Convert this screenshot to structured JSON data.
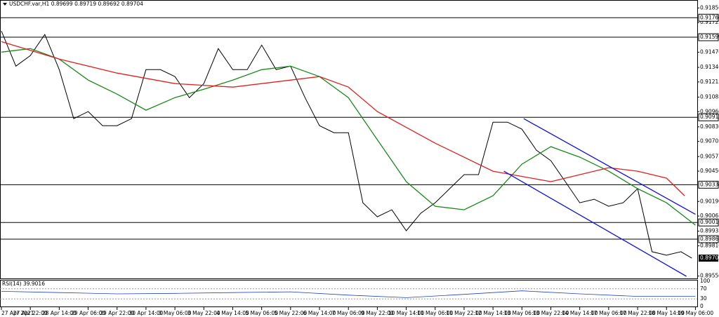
{
  "chart_data": {
    "type": "line",
    "title": "USDCHF.var,H1  0.89699 0.89719 0.89692 0.89704",
    "xlim": [
      0,
      385
    ],
    "ylim": [
      0.8953,
      0.919
    ],
    "xticks": [
      {
        "value": 0,
        "label": "27 Apr 2021"
      },
      {
        "value": 16,
        "label": "27 Apr 22:00"
      },
      {
        "value": 32,
        "label": "28 Apr 14:00"
      },
      {
        "value": 48,
        "label": "29 Apr 06:00"
      },
      {
        "value": 64,
        "label": "29 Apr 22:00"
      },
      {
        "value": 80,
        "label": "30 Apr 14:00"
      },
      {
        "value": 96,
        "label": "3 May 06:00"
      },
      {
        "value": 112,
        "label": "3 May 22:00"
      },
      {
        "value": 128,
        "label": "4 May 14:00"
      },
      {
        "value": 144,
        "label": "5 May 06:00"
      },
      {
        "value": 160,
        "label": "5 May 22:00"
      },
      {
        "value": 176,
        "label": "6 May 14:00"
      },
      {
        "value": 192,
        "label": "7 May 06:00"
      },
      {
        "value": 208,
        "label": "9 May 22:00"
      },
      {
        "value": 224,
        "label": "10 May 14:00"
      },
      {
        "value": 240,
        "label": "11 May 06:00"
      },
      {
        "value": 256,
        "label": "11 May 22:00"
      },
      {
        "value": 272,
        "label": "12 May 14:00"
      },
      {
        "value": 288,
        "label": "13 May 06:00"
      },
      {
        "value": 304,
        "label": "13 May 22:00"
      },
      {
        "value": 320,
        "label": "14 May 14:00"
      },
      {
        "value": 336,
        "label": "17 May 06:00"
      },
      {
        "value": 352,
        "label": "17 May 22:00"
      },
      {
        "value": 368,
        "label": "18 May 14:00"
      },
      {
        "value": 384,
        "label": "19 May 06:00"
      }
    ],
    "yticks": [
      {
        "value": 0.9185,
        "label": "0.91850"
      },
      {
        "value": 0.91725,
        "label": "0.91725"
      },
      {
        "value": 0.9147,
        "label": "0.91470"
      },
      {
        "value": 0.9134,
        "label": "0.91340"
      },
      {
        "value": 0.91215,
        "label": "0.91215"
      },
      {
        "value": 0.91085,
        "label": "0.91085"
      },
      {
        "value": 0.9096,
        "label": "0.90960"
      },
      {
        "value": 0.9083,
        "label": "0.90830"
      },
      {
        "value": 0.90705,
        "label": "0.90705"
      },
      {
        "value": 0.90575,
        "label": "0.90575"
      },
      {
        "value": 0.9045,
        "label": "0.90450"
      },
      {
        "value": 0.9019,
        "label": "0.90190"
      },
      {
        "value": 0.90065,
        "label": "0.90065"
      },
      {
        "value": 0.89935,
        "label": "0.89935"
      },
      {
        "value": 0.8981,
        "label": "0.89810"
      },
      {
        "value": 0.8955,
        "label": "0.89550"
      }
    ],
    "levels": [
      {
        "value": 0.91766,
        "label": "0.91766"
      },
      {
        "value": 0.91599,
        "label": "0.91599"
      },
      {
        "value": 0.90912,
        "label": "0.90912"
      },
      {
        "value": 0.90334,
        "label": "0.90334"
      },
      {
        "value": 0.9001,
        "label": "0.90010"
      },
      {
        "value": 0.89867,
        "label": "0.89867"
      }
    ],
    "current_price": {
      "value": 0.89704,
      "label": "0.89704"
    },
    "series": [
      {
        "color": "#000000",
        "x": [
          0,
          8,
          16,
          24,
          32,
          40,
          48,
          56,
          64,
          72,
          80,
          88,
          96,
          104,
          112,
          120,
          128,
          136,
          144,
          152,
          160,
          168,
          176,
          184,
          192,
          200,
          208,
          216,
          224,
          232,
          240,
          248,
          256,
          264,
          272,
          280,
          288,
          296,
          304,
          312,
          320,
          328,
          336,
          344,
          352,
          360,
          368,
          376,
          382
        ],
        "values": [
          0.91652,
          0.91351,
          0.91441,
          0.91622,
          0.91321,
          0.909,
          0.90961,
          0.9084,
          0.9084,
          0.909,
          0.91321,
          0.91321,
          0.91261,
          0.91081,
          0.91201,
          0.91501,
          0.91321,
          0.91321,
          0.91531,
          0.91321,
          0.91351,
          0.91081,
          0.9084,
          0.9078,
          0.9078,
          0.90179,
          0.90059,
          0.90119,
          0.89939,
          0.90089,
          0.90179,
          0.903,
          0.9042,
          0.9042,
          0.9087,
          0.9087,
          0.9081,
          0.9063,
          0.9054,
          0.9036,
          0.90179,
          0.90209,
          0.90149,
          0.90179,
          0.903,
          0.89759,
          0.89729,
          0.89759,
          0.89704
        ]
      },
      {
        "color": "#1a8a1a",
        "x": [
          0,
          16,
          32,
          48,
          64,
          80,
          96,
          112,
          128,
          144,
          160,
          176,
          192,
          208,
          224,
          240,
          256,
          272,
          288,
          304,
          320,
          336,
          352,
          368,
          384
        ],
        "values": [
          0.91471,
          0.91501,
          0.91411,
          0.91231,
          0.91111,
          0.90973,
          0.91081,
          0.91153,
          0.91231,
          0.91321,
          0.91351,
          0.91261,
          0.91081,
          0.9072,
          0.9036,
          0.90149,
          0.90119,
          0.90239,
          0.9051,
          0.9066,
          0.9057,
          0.9045,
          0.903,
          0.90179,
          0.89987
        ]
      },
      {
        "color": "#e02020",
        "x": [
          0,
          32,
          64,
          96,
          128,
          160,
          176,
          192,
          208,
          240,
          272,
          304,
          336,
          352,
          368,
          378
        ],
        "values": [
          0.91561,
          0.91411,
          0.91291,
          0.91201,
          0.91171,
          0.91231,
          0.91261,
          0.91171,
          0.90961,
          0.9069,
          0.9045,
          0.9036,
          0.9048,
          0.9045,
          0.9039,
          0.90239
        ]
      },
      {
        "color": "#1010e0",
        "x": [
          289,
          384
        ],
        "values": [
          0.909,
          0.9008
        ]
      },
      {
        "color": "#1010e0",
        "x": [
          278,
          379
        ],
        "values": [
          0.9045,
          0.89548
        ]
      }
    ],
    "rsi": {
      "label": "RSI(14) 39.9016",
      "color": "#2040c0",
      "ylim": [
        0,
        100
      ],
      "yticks": [
        100,
        70,
        30,
        0
      ],
      "x": [
        0,
        32,
        64,
        96,
        128,
        160,
        192,
        224,
        256,
        288,
        320,
        352,
        384
      ],
      "values": [
        60,
        55,
        50,
        52,
        55,
        58,
        45,
        35,
        48,
        62,
        50,
        40,
        40
      ]
    }
  }
}
